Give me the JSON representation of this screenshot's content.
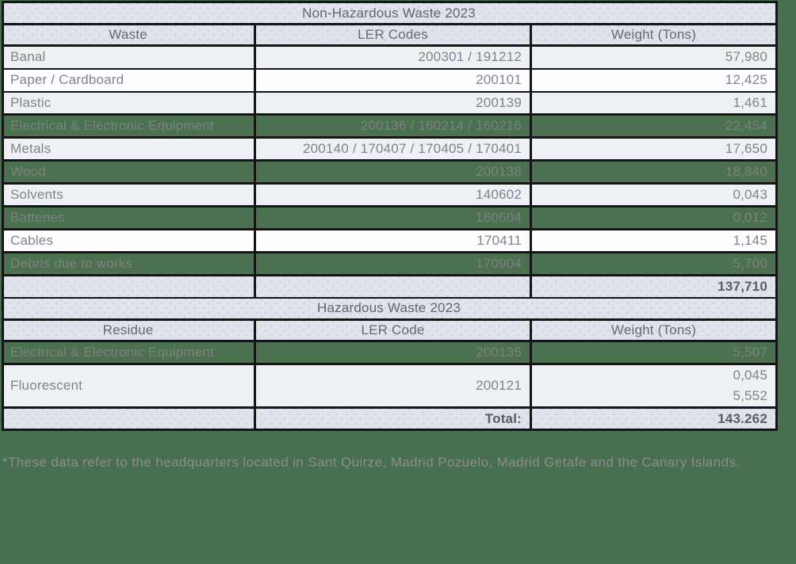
{
  "colors": {
    "page_background": "#487050",
    "green_row": "#4b7150",
    "header_band": "#dfe3ec",
    "light_row": "#edf1f6",
    "white_row": "#fdfeff",
    "border": "#151515",
    "body_text": "#82828a",
    "footnote_text": "#8c8c8c"
  },
  "non_hazardous": {
    "title": "Non-Hazardous Waste 2023",
    "columns": [
      "Waste",
      "LER Codes",
      "Weight (Tons)"
    ],
    "rows": [
      {
        "name": "Banal",
        "codes": "200301 / 191212",
        "weight": "57,980"
      },
      {
        "name": "Paper / Cardboard",
        "codes": "200101",
        "weight": "12,425"
      },
      {
        "name": "Plastic",
        "codes": "200139",
        "weight": "1,461"
      },
      {
        "name": "Electrical & Electronic Equipment",
        "codes": "200136 / 160214 / 160216",
        "weight": "22,454"
      },
      {
        "name": "Metals",
        "codes": "200140 / 170407 / 170405 / 170401",
        "weight": "17,650"
      },
      {
        "name": "Wood",
        "codes": "200138",
        "weight": "18,840"
      },
      {
        "name": "Solvents",
        "codes": "140602",
        "weight": "0,043"
      },
      {
        "name": "Batteries",
        "codes": "160604",
        "weight": "0,012"
      },
      {
        "name": "Cables",
        "codes": "170411",
        "weight": "1,145"
      },
      {
        "name": "Debris due to works",
        "codes": "170904",
        "weight": "5,700"
      }
    ],
    "total_value": "137,710"
  },
  "hazardous": {
    "title": "Hazardous Waste 2023",
    "columns": [
      "Residue",
      "LER Code",
      "Weight (Tons)"
    ],
    "rows": [
      {
        "name": "Electrical & Electronic Equipment",
        "codes": "200135",
        "weight": "5,507"
      },
      {
        "name": "Fluorescent",
        "codes": "200121",
        "weight_line1": "0,045",
        "weight_line2": "5,552"
      }
    ],
    "total_label": "Total:",
    "total_value": "143.262"
  },
  "footnote": "*These data refer to the headquarters located in Sant Quirze, Madrid Pozuelo, Madrid Getafe and the Canary Islands."
}
